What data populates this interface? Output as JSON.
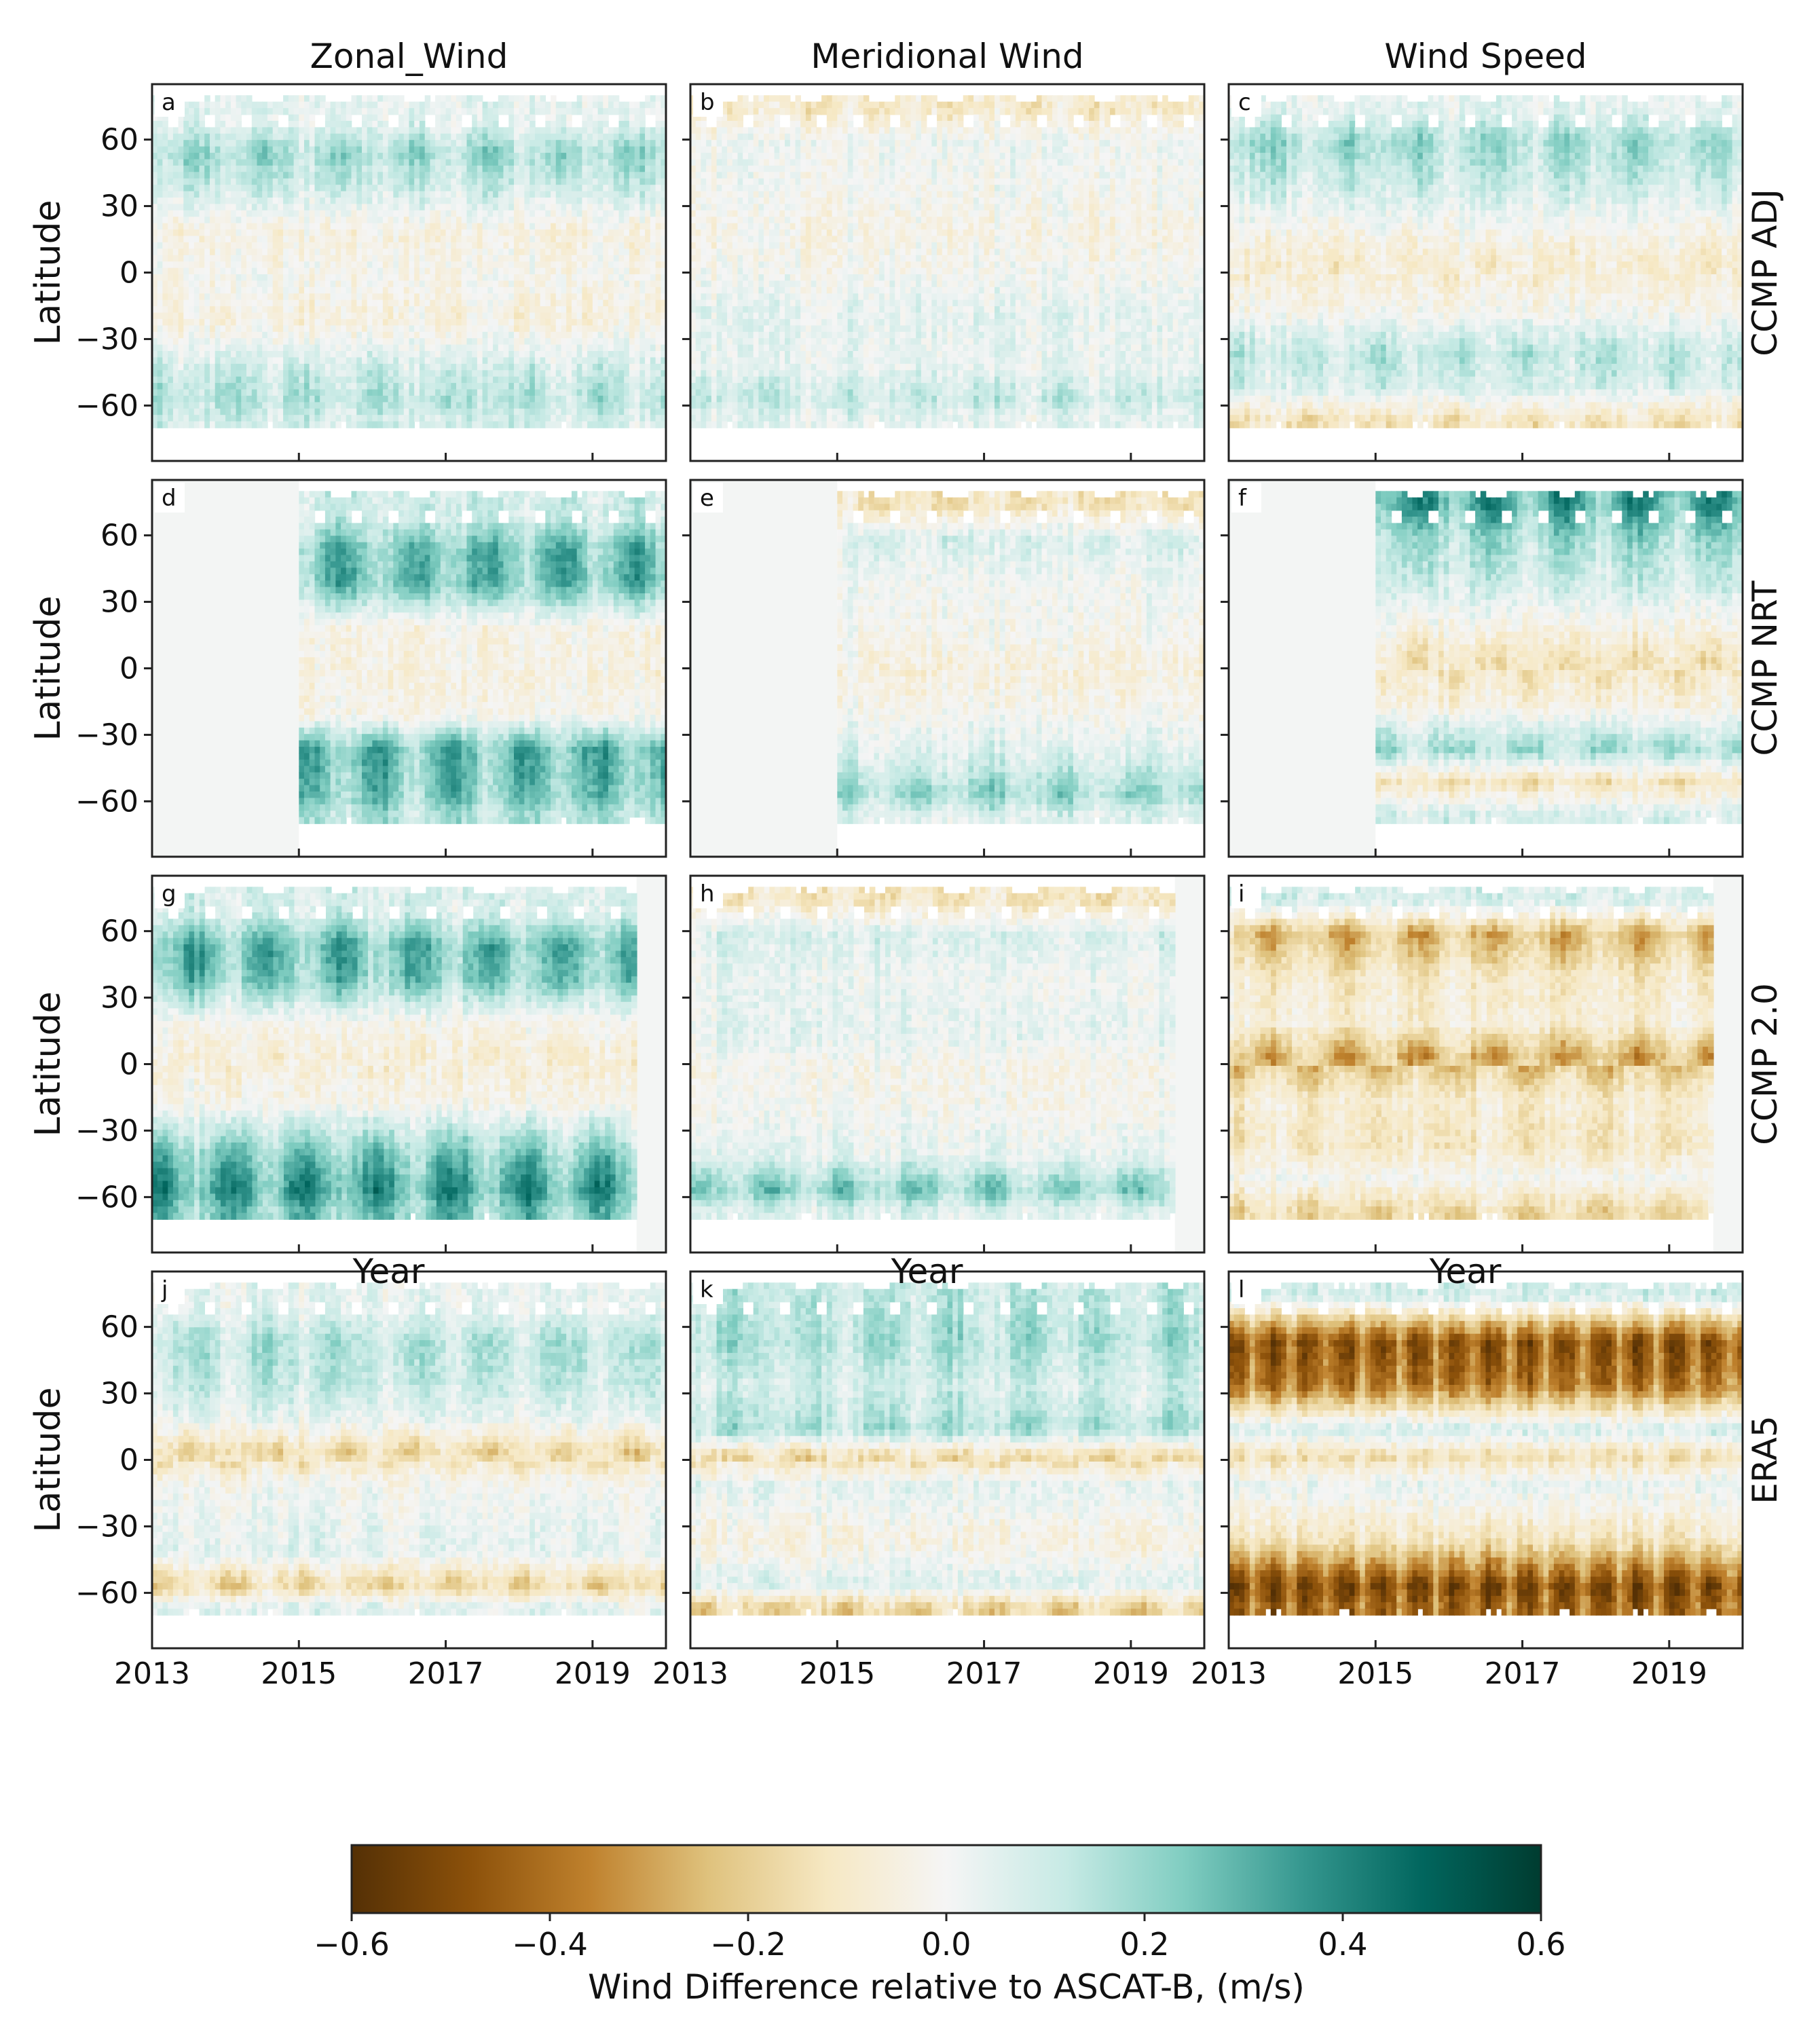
{
  "chart_data": {
    "type": "heatmap",
    "layout": "4x3 grid of latitude-time Hovmoller heatmaps",
    "column_titles": [
      "Zonal_Wind",
      "Meridional Wind",
      "Wind Speed"
    ],
    "row_labels": [
      "CCMP ADJ",
      "CCMP NRT",
      "CCMP 2.0",
      "ERA5"
    ],
    "panel_letters": [
      "a",
      "b",
      "c",
      "d",
      "e",
      "f",
      "g",
      "h",
      "i",
      "j",
      "k",
      "l"
    ],
    "ylabel": "Latitude",
    "xlabel": "Year",
    "x_range": [
      2013,
      2020
    ],
    "y_range": [
      -85,
      85
    ],
    "x_ticks": [
      2013,
      2015,
      2017,
      2019
    ],
    "x_tick_labels": [
      "2013",
      "2015",
      "2017",
      "2019"
    ],
    "y_ticks": [
      60,
      30,
      0,
      -30,
      -60
    ],
    "y_tick_labels": [
      "60",
      "30",
      "0",
      "−30",
      "−60"
    ],
    "colorbar": {
      "label": "Wind Difference relative to ASCAT-B, (m/s)",
      "vmin": -0.6,
      "vmax": 0.6,
      "ticks": [
        -0.6,
        -0.4,
        -0.2,
        0.0,
        0.2,
        0.4,
        0.6
      ],
      "tick_labels": [
        "−0.6",
        "−0.4",
        "−0.2",
        "0.0",
        "0.2",
        "0.4",
        "0.6"
      ],
      "colormap": "BrBG",
      "stops": [
        "#543005",
        "#8c510a",
        "#bf812d",
        "#dfc27d",
        "#f6e8c3",
        "#f5f5f5",
        "#c7eae5",
        "#80cdc1",
        "#35978f",
        "#01665e",
        "#003c30"
      ]
    },
    "panels": [
      {
        "letter": "a",
        "row": "CCMP ADJ",
        "column": "Zonal_Wind",
        "data_start": 2013.0,
        "data_end": 2020.0,
        "lat_bands": [
          [
            70,
            0.05
          ],
          [
            55,
            0.22
          ],
          [
            40,
            0.12
          ],
          [
            20,
            -0.06
          ],
          [
            0,
            -0.02
          ],
          [
            -20,
            -0.07
          ],
          [
            -40,
            0.1
          ],
          [
            -55,
            0.18
          ],
          [
            -65,
            0.1
          ]
        ]
      },
      {
        "letter": "b",
        "row": "CCMP ADJ",
        "column": "Meridional Wind",
        "data_start": 2013.0,
        "data_end": 2020.0,
        "lat_bands": [
          [
            75,
            -0.12
          ],
          [
            60,
            0.02
          ],
          [
            40,
            0.0
          ],
          [
            20,
            -0.04
          ],
          [
            0,
            0.0
          ],
          [
            -15,
            0.05
          ],
          [
            -40,
            0.04
          ],
          [
            -55,
            0.14
          ],
          [
            -65,
            0.05
          ]
        ]
      },
      {
        "letter": "c",
        "row": "CCMP ADJ",
        "column": "Wind Speed",
        "data_start": 2013.0,
        "data_end": 2020.0,
        "lat_bands": [
          [
            75,
            0.06
          ],
          [
            60,
            0.22
          ],
          [
            40,
            0.12
          ],
          [
            20,
            -0.03
          ],
          [
            5,
            -0.1
          ],
          [
            -15,
            -0.02
          ],
          [
            -35,
            0.16
          ],
          [
            -50,
            0.1
          ],
          [
            -65,
            -0.15
          ]
        ]
      },
      {
        "letter": "d",
        "row": "CCMP NRT",
        "column": "Zonal_Wind",
        "data_start": 2015.0,
        "data_end": 2020.0,
        "lat_bands": [
          [
            70,
            0.12
          ],
          [
            55,
            0.32
          ],
          [
            40,
            0.32
          ],
          [
            20,
            -0.04
          ],
          [
            0,
            -0.06
          ],
          [
            -20,
            -0.03
          ],
          [
            -35,
            0.34
          ],
          [
            -55,
            0.3
          ],
          [
            -65,
            0.18
          ]
        ]
      },
      {
        "letter": "e",
        "row": "CCMP NRT",
        "column": "Meridional Wind",
        "data_start": 2015.0,
        "data_end": 2020.0,
        "lat_bands": [
          [
            75,
            -0.15
          ],
          [
            60,
            0.1
          ],
          [
            40,
            0.02
          ],
          [
            20,
            0.0
          ],
          [
            0,
            -0.06
          ],
          [
            -20,
            0.0
          ],
          [
            -40,
            0.1
          ],
          [
            -55,
            0.24
          ],
          [
            -65,
            0.08
          ]
        ]
      },
      {
        "letter": "f",
        "row": "CCMP NRT",
        "column": "Wind Speed",
        "data_start": 2015.0,
        "data_end": 2020.0,
        "lat_bands": [
          [
            75,
            0.4
          ],
          [
            60,
            0.22
          ],
          [
            40,
            0.12
          ],
          [
            20,
            -0.04
          ],
          [
            5,
            -0.16
          ],
          [
            -15,
            -0.06
          ],
          [
            -35,
            0.22
          ],
          [
            -50,
            -0.16
          ],
          [
            -65,
            0.1
          ]
        ]
      },
      {
        "letter": "g",
        "row": "CCMP 2.0",
        "column": "Zonal_Wind",
        "data_start": 2013.0,
        "data_end": 2019.6,
        "lat_bands": [
          [
            70,
            0.1
          ],
          [
            55,
            0.34
          ],
          [
            40,
            0.3
          ],
          [
            20,
            -0.02
          ],
          [
            5,
            -0.08
          ],
          [
            -15,
            -0.03
          ],
          [
            -40,
            0.3
          ],
          [
            -55,
            0.42
          ],
          [
            -65,
            0.3
          ]
        ]
      },
      {
        "letter": "h",
        "row": "CCMP 2.0",
        "column": "Meridional Wind",
        "data_start": 2013.0,
        "data_end": 2019.6,
        "lat_bands": [
          [
            75,
            -0.14
          ],
          [
            60,
            0.1
          ],
          [
            40,
            0.03
          ],
          [
            15,
            0.06
          ],
          [
            0,
            -0.02
          ],
          [
            -20,
            0.0
          ],
          [
            -40,
            0.06
          ],
          [
            -55,
            0.28
          ],
          [
            -65,
            0.08
          ]
        ]
      },
      {
        "letter": "i",
        "row": "CCMP 2.0",
        "column": "Wind Speed",
        "data_start": 2013.0,
        "data_end": 2019.6,
        "lat_bands": [
          [
            75,
            0.1
          ],
          [
            60,
            -0.3
          ],
          [
            40,
            -0.12
          ],
          [
            20,
            -0.08
          ],
          [
            5,
            -0.32
          ],
          [
            -15,
            -0.1
          ],
          [
            -35,
            -0.14
          ],
          [
            -50,
            0.0
          ],
          [
            -65,
            -0.2
          ]
        ]
      },
      {
        "letter": "j",
        "row": "ERA5",
        "column": "Zonal_Wind",
        "data_start": 2013.0,
        "data_end": 2020.0,
        "lat_bands": [
          [
            70,
            0.05
          ],
          [
            55,
            0.18
          ],
          [
            35,
            0.14
          ],
          [
            20,
            0.04
          ],
          [
            5,
            -0.2
          ],
          [
            -10,
            0.0
          ],
          [
            -40,
            0.06
          ],
          [
            -55,
            -0.22
          ],
          [
            -65,
            0.06
          ]
        ]
      },
      {
        "letter": "k",
        "row": "ERA5",
        "column": "Meridional Wind",
        "data_start": 2013.0,
        "data_end": 2020.0,
        "lat_bands": [
          [
            70,
            0.16
          ],
          [
            55,
            0.2
          ],
          [
            35,
            0.1
          ],
          [
            15,
            0.2
          ],
          [
            3,
            -0.2
          ],
          [
            -10,
            0.06
          ],
          [
            -35,
            -0.06
          ],
          [
            -55,
            0.08
          ],
          [
            -65,
            -0.22
          ]
        ]
      },
      {
        "letter": "l",
        "row": "ERA5",
        "column": "Wind Speed",
        "data_start": 2013.0,
        "data_end": 2020.0,
        "lat_bands": [
          [
            75,
            0.1
          ],
          [
            55,
            -0.55
          ],
          [
            35,
            -0.45
          ],
          [
            15,
            0.1
          ],
          [
            3,
            -0.18
          ],
          [
            -10,
            0.04
          ],
          [
            -35,
            -0.15
          ],
          [
            -55,
            -0.58
          ],
          [
            -65,
            -0.5
          ]
        ]
      }
    ]
  }
}
